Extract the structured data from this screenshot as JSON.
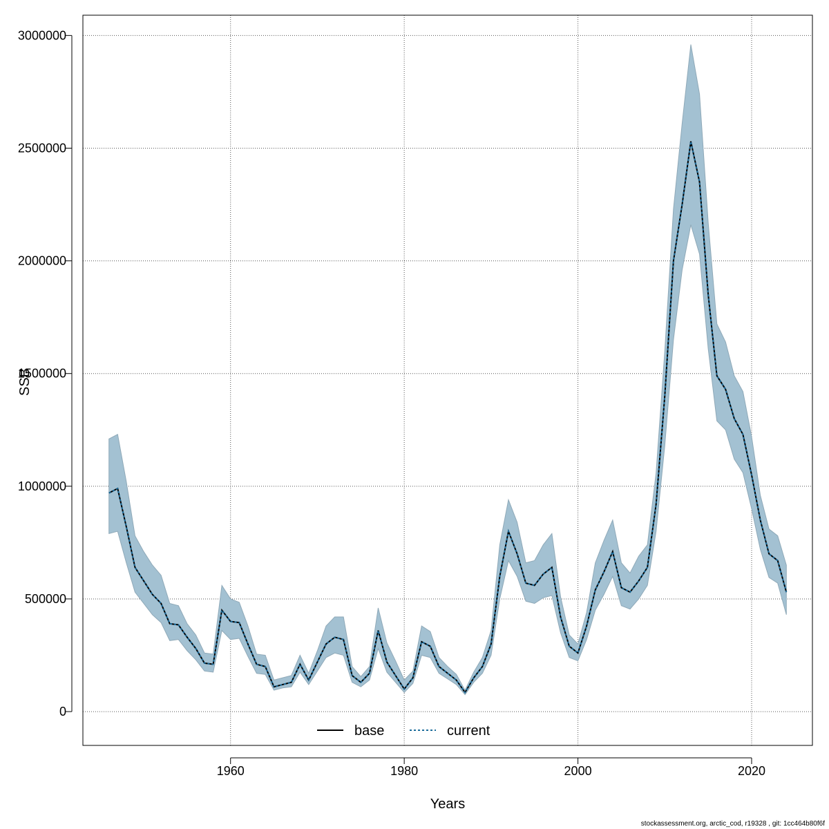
{
  "chart_data": {
    "type": "line",
    "xlabel": "Years",
    "ylabel": "SSB",
    "xlim": [
      1943,
      2027
    ],
    "ylim": [
      -150000,
      3090000
    ],
    "xticks": [
      1960,
      1980,
      2000,
      2020
    ],
    "yticks": [
      0,
      500000,
      1000000,
      1500000,
      2000000,
      2500000,
      3000000
    ],
    "ytick_labels": [
      "0",
      "500000",
      "1000000",
      "1500000",
      "2000000",
      "2500000",
      "3000000"
    ],
    "grid": true,
    "legend_position": "bottom-center",
    "colors": {
      "band_fill": "#a3c1d2",
      "band_stroke": "#8fa9b8",
      "base_line": "#000000",
      "current_line": "#1a6b9a",
      "grid": "#555555"
    },
    "x": [
      1946,
      1947,
      1948,
      1949,
      1950,
      1951,
      1952,
      1953,
      1954,
      1955,
      1956,
      1957,
      1958,
      1959,
      1960,
      1961,
      1962,
      1963,
      1964,
      1965,
      1966,
      1967,
      1968,
      1969,
      1970,
      1971,
      1972,
      1973,
      1974,
      1975,
      1976,
      1977,
      1978,
      1979,
      1980,
      1981,
      1982,
      1983,
      1984,
      1985,
      1986,
      1987,
      1988,
      1989,
      1990,
      1991,
      1992,
      1993,
      1994,
      1995,
      1996,
      1997,
      1998,
      1999,
      2000,
      2001,
      2002,
      2003,
      2004,
      2005,
      2006,
      2007,
      2008,
      2009,
      2010,
      2011,
      2012,
      2013,
      2014,
      2015,
      2016,
      2017,
      2018,
      2019,
      2020,
      2021,
      2022,
      2023,
      2024
    ],
    "series": [
      {
        "name": "base",
        "values": [
          970000,
          990000,
          820000,
          640000,
          580000,
          520000,
          480000,
          390000,
          385000,
          330000,
          280000,
          215000,
          210000,
          450000,
          400000,
          395000,
          300000,
          210000,
          200000,
          110000,
          120000,
          130000,
          210000,
          140000,
          220000,
          300000,
          330000,
          320000,
          160000,
          130000,
          170000,
          360000,
          220000,
          160000,
          100000,
          150000,
          310000,
          290000,
          200000,
          170000,
          140000,
          85000,
          150000,
          200000,
          300000,
          600000,
          800000,
          700000,
          570000,
          560000,
          610000,
          640000,
          420000,
          290000,
          260000,
          380000,
          540000,
          620000,
          710000,
          550000,
          530000,
          580000,
          640000,
          920000,
          1400000,
          2000000,
          2250000,
          2530000,
          2350000,
          1850000,
          1490000,
          1430000,
          1300000,
          1230000,
          1050000,
          850000,
          700000,
          670000,
          530000
        ]
      },
      {
        "name": "current",
        "values": [
          970000,
          990000,
          820000,
          640000,
          580000,
          520000,
          480000,
          390000,
          385000,
          330000,
          280000,
          215000,
          210000,
          450000,
          400000,
          395000,
          300000,
          210000,
          200000,
          110000,
          120000,
          130000,
          210000,
          140000,
          220000,
          300000,
          330000,
          320000,
          160000,
          130000,
          170000,
          360000,
          220000,
          160000,
          100000,
          150000,
          310000,
          290000,
          200000,
          170000,
          140000,
          85000,
          150000,
          200000,
          300000,
          600000,
          800000,
          700000,
          570000,
          560000,
          610000,
          640000,
          420000,
          290000,
          260000,
          380000,
          540000,
          620000,
          710000,
          550000,
          530000,
          580000,
          640000,
          920000,
          1400000,
          2000000,
          2250000,
          2530000,
          2350000,
          1850000,
          1490000,
          1430000,
          1300000,
          1230000,
          1050000,
          850000,
          700000,
          670000,
          530000
        ]
      }
    ],
    "band_upper": [
      1210000,
      1230000,
      1020000,
      780000,
      710000,
      650000,
      605000,
      480000,
      470000,
      390000,
      340000,
      260000,
      255000,
      560000,
      500000,
      485000,
      380000,
      255000,
      250000,
      140000,
      150000,
      160000,
      250000,
      170000,
      270000,
      380000,
      420000,
      420000,
      200000,
      155000,
      200000,
      460000,
      305000,
      225000,
      140000,
      180000,
      380000,
      355000,
      240000,
      200000,
      165000,
      95000,
      175000,
      240000,
      360000,
      740000,
      940000,
      840000,
      660000,
      670000,
      740000,
      790000,
      510000,
      340000,
      300000,
      440000,
      660000,
      760000,
      850000,
      660000,
      615000,
      690000,
      740000,
      1060000,
      1600000,
      2230000,
      2610000,
      2960000,
      2740000,
      2170000,
      1720000,
      1640000,
      1490000,
      1420000,
      1220000,
      960000,
      810000,
      780000,
      650000
    ],
    "band_lower": [
      790000,
      800000,
      660000,
      530000,
      480000,
      430000,
      395000,
      315000,
      320000,
      270000,
      230000,
      180000,
      175000,
      360000,
      320000,
      325000,
      245000,
      170000,
      165000,
      95000,
      105000,
      110000,
      175000,
      120000,
      180000,
      240000,
      260000,
      250000,
      130000,
      110000,
      140000,
      280000,
      175000,
      130000,
      85000,
      125000,
      250000,
      240000,
      170000,
      145000,
      120000,
      75000,
      130000,
      170000,
      250000,
      500000,
      670000,
      600000,
      490000,
      480000,
      505000,
      515000,
      350000,
      240000,
      225000,
      320000,
      450000,
      520000,
      600000,
      470000,
      455000,
      500000,
      560000,
      800000,
      1180000,
      1650000,
      1960000,
      2160000,
      2030000,
      1610000,
      1290000,
      1250000,
      1120000,
      1060000,
      900000,
      720000,
      595000,
      570000,
      430000
    ],
    "legend": [
      {
        "label": "base",
        "style": "solid"
      },
      {
        "label": "current",
        "style": "dotted"
      }
    ]
  },
  "footer": "stockassessment.org, arctic_cod, r19328 , git: 1cc464b80f6f"
}
